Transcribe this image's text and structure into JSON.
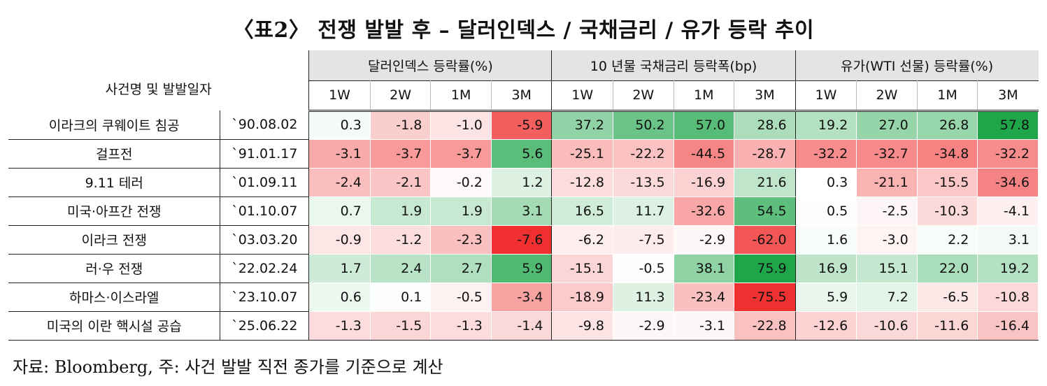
{
  "title": "〈표2〉 전쟁 발발 후 – 달러인덱스 / 국채금리 / 유가 등락 추이",
  "header": {
    "event_col": "사건명 및 발발일자",
    "groups": [
      "달러인덱스 등락률(%)",
      "10 년물 국채금리 등락폭(bp)",
      "유가(WTI 선물) 등락률(%)"
    ],
    "periods": [
      "1W",
      "2W",
      "1M",
      "3M"
    ]
  },
  "rows": [
    {
      "name": "이라크의 쿠웨이트 침공",
      "date": "`90.08.02",
      "values": [
        "0.3",
        "-1.8",
        "-1.0",
        "-5.9",
        "37.2",
        "50.2",
        "57.0",
        "28.6",
        "19.2",
        "27.0",
        "26.8",
        "57.8"
      ]
    },
    {
      "name": "걸프전",
      "date": "`91.01.17",
      "values": [
        "-3.1",
        "-3.7",
        "-3.7",
        "5.6",
        "-25.1",
        "-22.2",
        "-44.5",
        "-28.7",
        "-32.2",
        "-32.7",
        "-34.8",
        "-32.2"
      ]
    },
    {
      "name": "9.11 테러",
      "date": "`01.09.11",
      "values": [
        "-2.4",
        "-2.1",
        "-0.2",
        "1.2",
        "-12.8",
        "-13.5",
        "-16.9",
        "21.6",
        "0.3",
        "-21.1",
        "-15.5",
        "-34.6"
      ]
    },
    {
      "name": "미국·아프간 전쟁",
      "date": "`01.10.07",
      "values": [
        "0.7",
        "1.9",
        "1.9",
        "3.1",
        "16.5",
        "11.7",
        "-32.6",
        "54.5",
        "0.5",
        "-2.5",
        "-10.3",
        "-4.1"
      ]
    },
    {
      "name": "이라크 전쟁",
      "date": "`03.03.20",
      "values": [
        "-0.9",
        "-1.2",
        "-2.3",
        "-7.6",
        "-6.2",
        "-7.5",
        "-2.9",
        "-62.0",
        "1.6",
        "-3.0",
        "2.2",
        "3.1"
      ]
    },
    {
      "name": "러·우 전쟁",
      "date": "`22.02.24",
      "values": [
        "1.7",
        "2.4",
        "2.7",
        "5.9",
        "-15.1",
        "-0.5",
        "38.1",
        "75.9",
        "16.9",
        "15.1",
        "22.0",
        "19.2"
      ]
    },
    {
      "name": "하마스·이스라엘",
      "date": "`23.10.07",
      "values": [
        "0.6",
        "0.1",
        "-0.5",
        "-3.4",
        "-18.9",
        "11.3",
        "-23.4",
        "-75.5",
        "5.9",
        "7.2",
        "-6.5",
        "-10.8"
      ]
    },
    {
      "name": "미국의 이란 핵시설 공습",
      "date": "`25.06.22",
      "values": [
        "-1.3",
        "-1.5",
        "-1.3",
        "-1.4",
        "-9.8",
        "-2.9",
        "-3.1",
        "-22.8",
        "-12.6",
        "-10.6",
        "-11.6",
        "-16.4"
      ]
    }
  ],
  "colors": {
    "positive": "#1fa64a",
    "negative": "#f03030",
    "neutral": "#ffffff"
  },
  "note": "자료: Bloomberg, 주: 사건 발발 직전 종가를 기준으로 계산"
}
